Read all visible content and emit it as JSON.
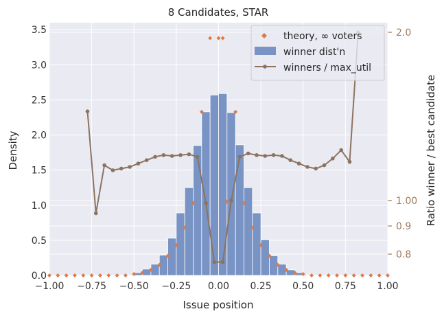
{
  "chart_data": {
    "type": "bar",
    "title": "8 Candidates, STAR",
    "xlabel": "Issue position",
    "ylabel": "Density",
    "ylabel_right": "Ratio winner / best candidate",
    "xlim": [
      -1.0,
      1.0
    ],
    "ylim": [
      0,
      3.6
    ],
    "ylim_right": [
      0.72,
      2.09
    ],
    "x_ticks": [
      -1.0,
      -0.75,
      -0.5,
      -0.25,
      0.0,
      0.25,
      0.5,
      0.75,
      1.0
    ],
    "x_tick_labels": [
      "−1.00",
      "−0.75",
      "−0.50",
      "−0.25",
      "0.00",
      "0.25",
      "0.50",
      "0.75",
      "1.00"
    ],
    "y_ticks": [
      0.0,
      0.5,
      1.0,
      1.5,
      2.0,
      2.5,
      3.0,
      3.5
    ],
    "y_tick_labels": [
      "0.0",
      "0.5",
      "1.0",
      "1.5",
      "2.0",
      "2.5",
      "3.0",
      "3.5"
    ],
    "y_right_ticks": [
      0.8,
      0.9,
      1.0,
      2.0
    ],
    "y_right_tick_labels": [
      "0.8",
      "0.9",
      "1.00",
      "2.0"
    ],
    "grid": true,
    "legend_position": "top-right",
    "legend": [
      "theory, ∞ voters",
      "winner dist'n",
      "winners / max_util"
    ],
    "colors": {
      "background": "#eaeaf2",
      "grid": "#ffffff",
      "bars": "#7893c4",
      "theory": "#e07a45",
      "ratio": "#8b7360",
      "right_axis_text": "#a07a5a",
      "text": "#262626"
    },
    "series": [
      {
        "name": "winner dist'n",
        "type": "bar",
        "bin_width": 0.05,
        "x": [
          -0.775,
          -0.725,
          -0.675,
          -0.625,
          -0.575,
          -0.525,
          -0.475,
          -0.425,
          -0.375,
          -0.325,
          -0.275,
          -0.225,
          -0.175,
          -0.125,
          -0.075,
          -0.025,
          0.025,
          0.075,
          0.125,
          0.175,
          0.225,
          0.275,
          0.325,
          0.375,
          0.425,
          0.475,
          0.525,
          0.575,
          0.625
        ],
        "values": [
          0.0,
          0.0,
          0.0,
          0.0,
          0.005,
          0.01,
          0.04,
          0.09,
          0.16,
          0.29,
          0.53,
          0.89,
          1.25,
          1.85,
          2.33,
          2.57,
          2.59,
          2.32,
          1.86,
          1.25,
          0.89,
          0.51,
          0.28,
          0.16,
          0.08,
          0.04,
          0.01,
          0.005,
          0.0
        ]
      },
      {
        "name": "theory, ∞ voters",
        "type": "scatter",
        "x": [
          -1.0,
          -0.95,
          -0.9,
          -0.85,
          -0.8,
          -0.75,
          -0.7,
          -0.65,
          -0.6,
          -0.55,
          -0.5,
          -0.45,
          -0.4,
          -0.35,
          -0.3,
          -0.25,
          -0.2,
          -0.15,
          -0.1,
          -0.05,
          0.0,
          0.025,
          0.05,
          0.1,
          0.15,
          0.2,
          0.25,
          0.3,
          0.35,
          0.4,
          0.45,
          0.5,
          0.55,
          0.6,
          0.65,
          0.7,
          0.75,
          0.8,
          0.85,
          0.9,
          0.95,
          1.0
        ],
        "values": [
          0.0,
          0.0,
          0.0,
          0.0,
          0.0,
          0.0,
          0.0,
          0.0,
          0.0,
          0.0,
          0.02,
          0.04,
          0.08,
          0.15,
          0.28,
          0.43,
          0.68,
          1.03,
          2.33,
          3.38,
          3.38,
          3.38,
          1.05,
          2.33,
          1.03,
          0.68,
          0.43,
          0.28,
          0.15,
          0.08,
          0.04,
          0.02,
          0.0,
          0.0,
          0.0,
          0.0,
          0.0,
          0.0,
          0.0,
          0.0,
          0.0,
          0.0
        ]
      },
      {
        "name": "winners / max_util",
        "type": "line",
        "axis": "right",
        "x": [
          -0.775,
          -0.725,
          -0.675,
          -0.625,
          -0.575,
          -0.525,
          -0.475,
          -0.425,
          -0.375,
          -0.325,
          -0.275,
          -0.225,
          -0.175,
          -0.125,
          -0.075,
          -0.025,
          0.025,
          0.075,
          0.125,
          0.175,
          0.225,
          0.275,
          0.325,
          0.375,
          0.425,
          0.475,
          0.525,
          0.575,
          0.625,
          0.675,
          0.725,
          0.775,
          0.825
        ],
        "values": [
          1.53,
          0.95,
          1.21,
          1.18,
          1.19,
          1.2,
          1.22,
          1.24,
          1.26,
          1.27,
          1.265,
          1.27,
          1.275,
          1.26,
          0.99,
          0.77,
          0.77,
          1.0,
          1.26,
          1.28,
          1.27,
          1.265,
          1.27,
          1.265,
          1.24,
          1.22,
          1.2,
          1.19,
          1.21,
          1.25,
          1.3,
          1.23,
          2.0
        ]
      }
    ]
  }
}
